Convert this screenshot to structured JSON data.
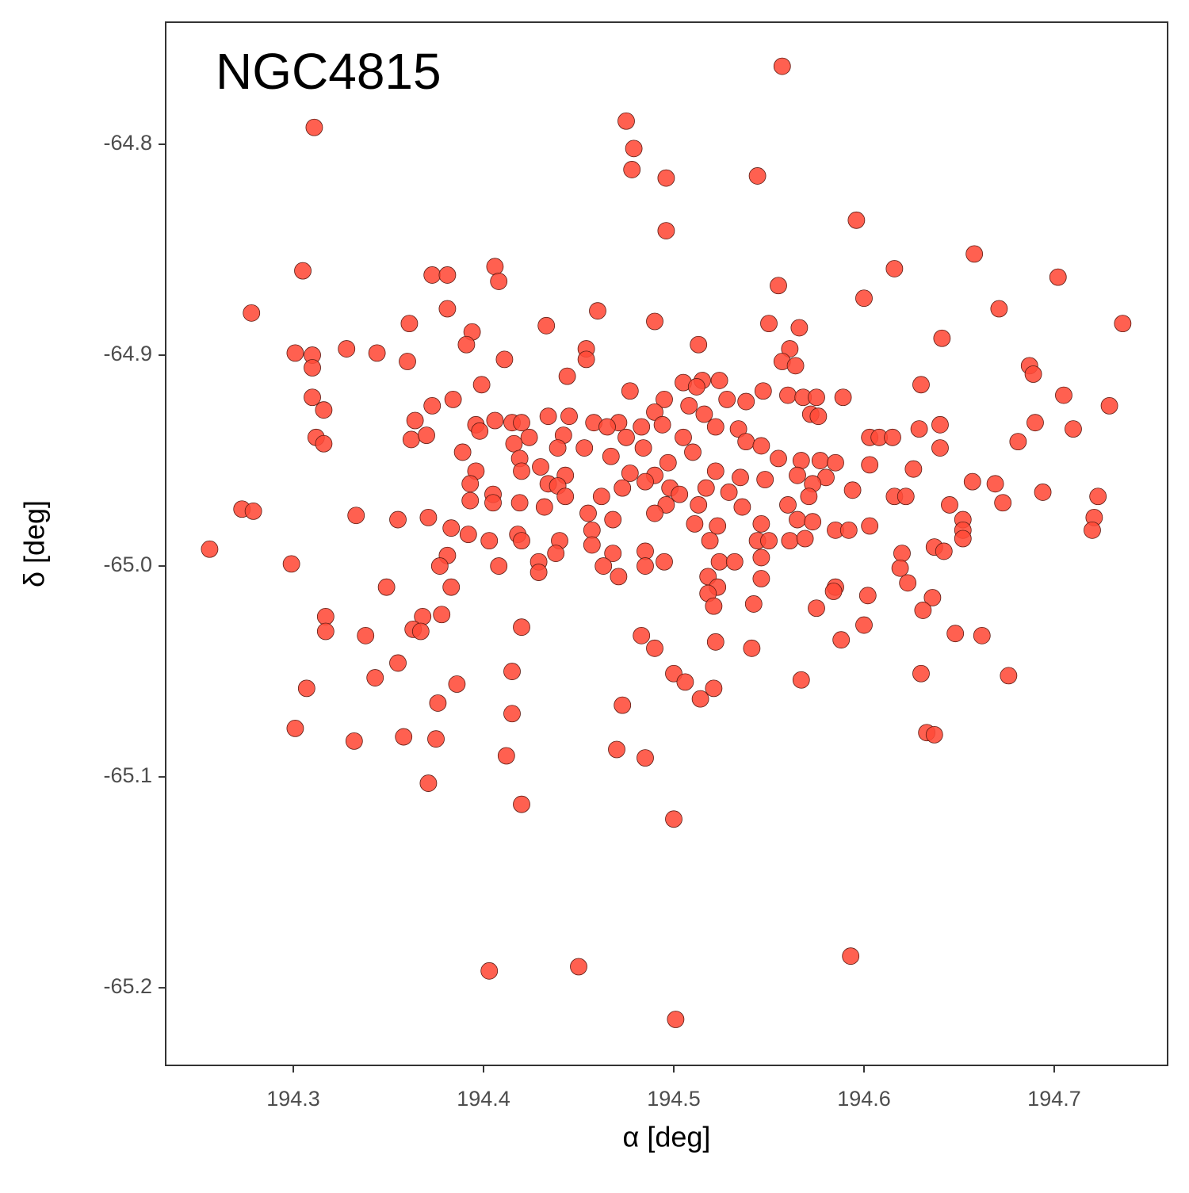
{
  "chart_data": {
    "type": "scatter",
    "title": "NGC4815",
    "x_label": "α [deg]",
    "y_label": "δ [deg]",
    "color": "#ff4a38",
    "xlim": [
      194.2329,
      194.7596
    ],
    "ylim": [
      -65.2368,
      -64.7421
    ],
    "xticks": [
      194.3,
      194.4,
      194.5,
      194.6,
      194.7
    ],
    "yticks": [
      -64.8,
      -64.9,
      {
        "value": -65,
        "label": "-65.0"
      },
      -65.1,
      -65.2
    ],
    "x": [
      194.557,
      194.311,
      194.475,
      194.479,
      194.478,
      194.496,
      194.544,
      194.496,
      194.596,
      194.658,
      194.305,
      194.373,
      194.381,
      194.406,
      194.408,
      194.616,
      194.702,
      194.555,
      194.6,
      194.278,
      194.381,
      194.46,
      194.671,
      194.736,
      194.361,
      194.433,
      194.49,
      194.55,
      194.566,
      194.641,
      194.394,
      194.391,
      194.328,
      194.301,
      194.344,
      194.31,
      194.31,
      194.36,
      194.411,
      194.454,
      194.454,
      194.513,
      194.561,
      194.557,
      194.564,
      194.687,
      194.689,
      194.444,
      194.399,
      194.515,
      194.505,
      194.524,
      194.63,
      194.31,
      194.316,
      194.384,
      194.373,
      194.477,
      194.495,
      194.512,
      194.528,
      194.538,
      194.547,
      194.56,
      194.568,
      194.575,
      194.589,
      194.705,
      194.729,
      194.572,
      194.576,
      194.508,
      194.516,
      194.49,
      194.364,
      194.396,
      194.406,
      194.415,
      194.42,
      194.434,
      194.445,
      194.458,
      194.471,
      194.483,
      194.494,
      194.534,
      194.522,
      194.629,
      194.64,
      194.69,
      194.71,
      194.362,
      194.37,
      194.312,
      194.316,
      194.398,
      194.424,
      194.442,
      194.465,
      194.475,
      194.505,
      194.538,
      194.546,
      194.603,
      194.608,
      194.615,
      194.64,
      194.681,
      194.416,
      194.439,
      194.389,
      194.453,
      194.467,
      194.484,
      194.497,
      194.51,
      194.555,
      194.567,
      194.577,
      194.585,
      194.603,
      194.626,
      194.419,
      194.43,
      194.396,
      194.42,
      194.443,
      194.477,
      194.49,
      194.522,
      194.535,
      194.565,
      194.58,
      194.657,
      194.669,
      194.393,
      194.434,
      194.439,
      194.548,
      194.573,
      194.594,
      194.473,
      194.485,
      194.498,
      194.517,
      194.405,
      194.443,
      194.462,
      194.503,
      194.529,
      194.571,
      194.616,
      194.622,
      194.694,
      194.723,
      194.393,
      194.405,
      194.419,
      194.432,
      194.496,
      194.513,
      194.536,
      194.56,
      194.645,
      194.673,
      194.273,
      194.279,
      194.333,
      194.355,
      194.371,
      194.455,
      194.468,
      194.49,
      194.511,
      194.546,
      194.565,
      194.573,
      194.585,
      194.592,
      194.603,
      194.652,
      194.721,
      194.72,
      194.383,
      194.418,
      194.457,
      194.523,
      194.652,
      194.392,
      194.403,
      194.42,
      194.44,
      194.519,
      194.561,
      194.569,
      194.652,
      194.256,
      194.457,
      194.468,
      194.485,
      194.544,
      194.55,
      194.381,
      194.438,
      194.62,
      194.637,
      194.642,
      194.524,
      194.532,
      194.546,
      194.299,
      194.377,
      194.408,
      194.429,
      194.463,
      194.485,
      194.495,
      194.619,
      194.429,
      194.471,
      194.518,
      194.546,
      194.623,
      194.383,
      194.349,
      194.523,
      194.585,
      194.584,
      194.518,
      194.602,
      194.636,
      194.521,
      194.542,
      194.575,
      194.631,
      194.378,
      194.368,
      194.317,
      194.317,
      194.363,
      194.367,
      194.42,
      194.6,
      194.338,
      194.483,
      194.648,
      194.662,
      194.588,
      194.522,
      194.49,
      194.541,
      194.355,
      194.415,
      194.343,
      194.5,
      194.506,
      194.63,
      194.676,
      194.567,
      194.386,
      194.307,
      194.521,
      194.514,
      194.473,
      194.376,
      194.415,
      194.301,
      194.358,
      194.332,
      194.375,
      194.633,
      194.637,
      194.47,
      194.412,
      194.485,
      194.371,
      194.42,
      194.5,
      194.593,
      194.45,
      194.403,
      194.501
    ],
    "y": [
      -64.763,
      -64.792,
      -64.789,
      -64.802,
      -64.812,
      -64.816,
      -64.815,
      -64.841,
      -64.836,
      -64.852,
      -64.86,
      -64.862,
      -64.862,
      -64.858,
      -64.865,
      -64.859,
      -64.863,
      -64.867,
      -64.873,
      -64.88,
      -64.878,
      -64.879,
      -64.878,
      -64.885,
      -64.885,
      -64.886,
      -64.884,
      -64.885,
      -64.887,
      -64.892,
      -64.889,
      -64.895,
      -64.897,
      -64.899,
      -64.899,
      -64.9,
      -64.906,
      -64.903,
      -64.902,
      -64.897,
      -64.902,
      -64.895,
      -64.897,
      -64.903,
      -64.905,
      -64.905,
      -64.909,
      -64.91,
      -64.914,
      -64.912,
      -64.913,
      -64.912,
      -64.914,
      -64.92,
      -64.926,
      -64.921,
      -64.924,
      -64.917,
      -64.921,
      -64.915,
      -64.921,
      -64.922,
      -64.917,
      -64.919,
      -64.92,
      -64.92,
      -64.92,
      -64.919,
      -64.924,
      -64.928,
      -64.929,
      -64.924,
      -64.928,
      -64.927,
      -64.931,
      -64.933,
      -64.931,
      -64.932,
      -64.932,
      -64.929,
      -64.929,
      -64.932,
      -64.932,
      -64.934,
      -64.933,
      -64.935,
      -64.934,
      -64.935,
      -64.933,
      -64.932,
      -64.935,
      -64.94,
      -64.938,
      -64.939,
      -64.942,
      -64.936,
      -64.939,
      -64.938,
      -64.934,
      -64.939,
      -64.939,
      -64.941,
      -64.943,
      -64.939,
      -64.939,
      -64.939,
      -64.944,
      -64.941,
      -64.942,
      -64.944,
      -64.946,
      -64.944,
      -64.948,
      -64.944,
      -64.951,
      -64.946,
      -64.949,
      -64.95,
      -64.95,
      -64.951,
      -64.952,
      -64.954,
      -64.949,
      -64.953,
      -64.955,
      -64.955,
      -64.957,
      -64.956,
      -64.957,
      -64.955,
      -64.958,
      -64.957,
      -64.958,
      -64.96,
      -64.961,
      -64.961,
      -64.961,
      -64.962,
      -64.959,
      -64.961,
      -64.964,
      -64.963,
      -64.96,
      -64.963,
      -64.963,
      -64.966,
      -64.967,
      -64.967,
      -64.966,
      -64.965,
      -64.967,
      -64.967,
      -64.967,
      -64.965,
      -64.967,
      -64.969,
      -64.97,
      -64.97,
      -64.972,
      -64.971,
      -64.971,
      -64.972,
      -64.971,
      -64.971,
      -64.97,
      -64.973,
      -64.974,
      -64.976,
      -64.978,
      -64.977,
      -64.975,
      -64.978,
      -64.975,
      -64.98,
      -64.98,
      -64.978,
      -64.979,
      -64.983,
      -64.983,
      -64.981,
      -64.978,
      -64.977,
      -64.983,
      -64.982,
      -64.985,
      -64.983,
      -64.981,
      -64.983,
      -64.985,
      -64.988,
      -64.988,
      -64.988,
      -64.988,
      -64.988,
      -64.987,
      -64.987,
      -64.992,
      -64.99,
      -64.994,
      -64.993,
      -64.988,
      -64.988,
      -64.995,
      -64.994,
      -64.994,
      -64.991,
      -64.993,
      -64.998,
      -64.998,
      -64.996,
      -64.999,
      -65.0,
      -65.0,
      -64.998,
      -65.0,
      -65.0,
      -64.998,
      -65.001,
      -65.003,
      -65.005,
      -65.005,
      -65.006,
      -65.008,
      -65.01,
      -65.01,
      -65.01,
      -65.01,
      -65.012,
      -65.013,
      -65.014,
      -65.015,
      -65.019,
      -65.018,
      -65.02,
      -65.021,
      -65.023,
      -65.024,
      -65.024,
      -65.031,
      -65.03,
      -65.031,
      -65.029,
      -65.028,
      -65.033,
      -65.033,
      -65.032,
      -65.033,
      -65.035,
      -65.036,
      -65.039,
      -65.039,
      -65.046,
      -65.05,
      -65.053,
      -65.051,
      -65.055,
      -65.051,
      -65.052,
      -65.054,
      -65.056,
      -65.058,
      -65.058,
      -65.063,
      -65.066,
      -65.065,
      -65.07,
      -65.077,
      -65.081,
      -65.083,
      -65.082,
      -65.079,
      -65.08,
      -65.087,
      -65.09,
      -65.091,
      -65.103,
      -65.113,
      -65.12,
      -65.185,
      -65.19,
      -65.192,
      -65.215
    ]
  }
}
